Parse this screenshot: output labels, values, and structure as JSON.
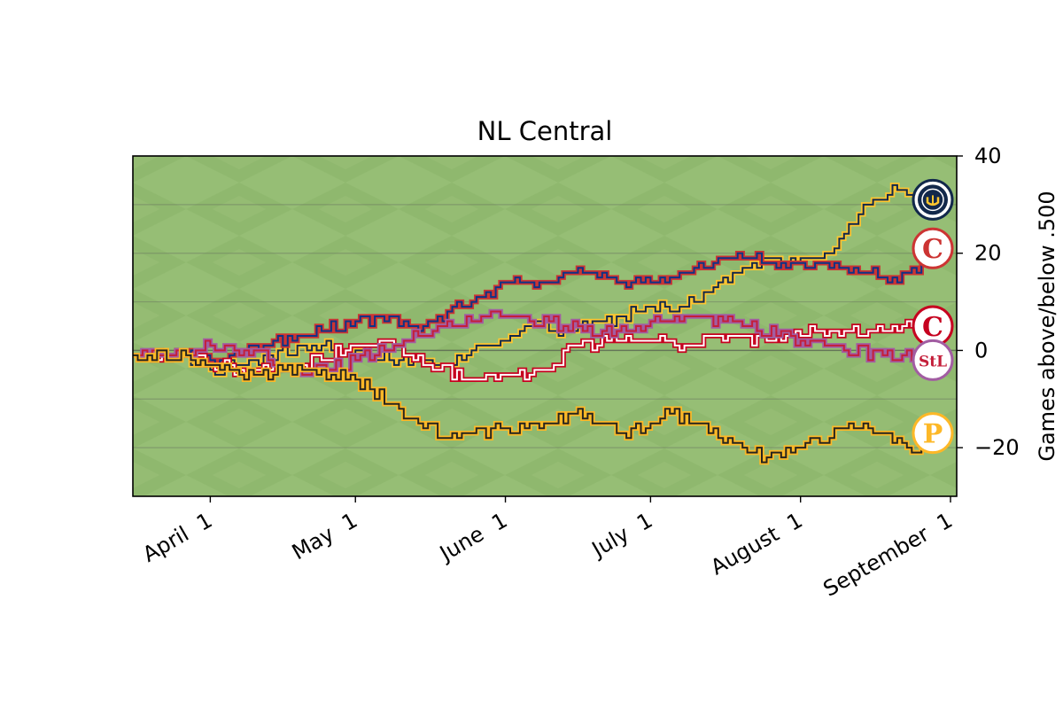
{
  "chart_data": {
    "type": "line",
    "title": "NL Central",
    "xlabel": "",
    "ylabel": "Games above/below .500",
    "y_axis_side": "right",
    "ylim": [
      -30,
      40
    ],
    "xlim": [
      "2025-03-16",
      "2025-09-01"
    ],
    "y_ticks": [
      40,
      20,
      0,
      -20
    ],
    "x_ticks": [
      {
        "date": "2025-04-01",
        "label": "April  1"
      },
      {
        "date": "2025-05-01",
        "label": "May  1"
      },
      {
        "date": "2025-06-01",
        "label": "June  1"
      },
      {
        "date": "2025-07-01",
        "label": "July  1"
      },
      {
        "date": "2025-08-01",
        "label": "August  1"
      },
      {
        "date": "2025-09-01",
        "label": "September  1"
      }
    ],
    "grid": "horizontal",
    "background": "baseball field grass",
    "series": [
      {
        "logo": "brewers-logo",
        "color": "#12284B",
        "accent": "#FFC52F",
        "logo_text": "",
        "points": [
          [
            "2025-03-16",
            -1
          ],
          [
            "2025-03-27",
            -1
          ],
          [
            "2025-04-01",
            -4
          ],
          [
            "2025-04-10",
            -2
          ],
          [
            "2025-04-20",
            1
          ],
          [
            "2025-05-01",
            0
          ],
          [
            "2025-05-10",
            -2
          ],
          [
            "2025-05-20",
            -3
          ],
          [
            "2025-05-31",
            2
          ],
          [
            "2025-06-05",
            5
          ],
          [
            "2025-06-15",
            4
          ],
          [
            "2025-06-25",
            7
          ],
          [
            "2025-07-01",
            9
          ],
          [
            "2025-07-08",
            9
          ],
          [
            "2025-07-15",
            14
          ],
          [
            "2025-07-20",
            17
          ],
          [
            "2025-07-25",
            19
          ],
          [
            "2025-07-31",
            18
          ],
          [
            "2025-08-05",
            19
          ],
          [
            "2025-08-10",
            24
          ],
          [
            "2025-08-15",
            30
          ],
          [
            "2025-08-20",
            34
          ],
          [
            "2025-08-25",
            31
          ],
          [
            "2025-08-28",
            31
          ]
        ]
      },
      {
        "logo": "cubs-logo",
        "color": "#0E3386",
        "accent": "#CC3433",
        "logo_text": "C",
        "points": [
          [
            "2025-03-16",
            -1
          ],
          [
            "2025-03-27",
            -1
          ],
          [
            "2025-04-01",
            -2
          ],
          [
            "2025-04-10",
            1
          ],
          [
            "2025-04-20",
            3
          ],
          [
            "2025-05-01",
            6
          ],
          [
            "2025-05-08",
            7
          ],
          [
            "2025-05-15",
            5
          ],
          [
            "2025-05-25",
            10
          ],
          [
            "2025-06-01",
            14
          ],
          [
            "2025-06-10",
            14
          ],
          [
            "2025-06-15",
            16
          ],
          [
            "2025-06-25",
            14
          ],
          [
            "2025-07-01",
            14
          ],
          [
            "2025-07-10",
            17
          ],
          [
            "2025-07-20",
            19
          ],
          [
            "2025-07-30",
            18
          ],
          [
            "2025-08-10",
            17
          ],
          [
            "2025-08-18",
            15
          ],
          [
            "2025-08-25",
            16
          ],
          [
            "2025-08-28",
            21
          ]
        ]
      },
      {
        "logo": "reds-logo",
        "color": "#FFFFFF",
        "accent": "#C6011F",
        "logo_text": "C",
        "points": [
          [
            "2025-03-16",
            -1
          ],
          [
            "2025-03-27",
            -1
          ],
          [
            "2025-04-01",
            -3
          ],
          [
            "2025-04-10",
            -4
          ],
          [
            "2025-04-20",
            -3
          ],
          [
            "2025-05-01",
            1
          ],
          [
            "2025-05-08",
            2
          ],
          [
            "2025-05-15",
            -3
          ],
          [
            "2025-05-25",
            -6
          ],
          [
            "2025-06-01",
            -5
          ],
          [
            "2025-06-10",
            -4
          ],
          [
            "2025-06-15",
            1
          ],
          [
            "2025-06-25",
            2
          ],
          [
            "2025-07-01",
            2
          ],
          [
            "2025-07-10",
            1
          ],
          [
            "2025-07-15",
            3
          ],
          [
            "2025-07-25",
            2
          ],
          [
            "2025-08-01",
            3
          ],
          [
            "2025-08-05",
            4
          ],
          [
            "2025-08-15",
            4
          ],
          [
            "2025-08-25",
            5
          ],
          [
            "2025-08-28",
            5
          ]
        ]
      },
      {
        "logo": "cardinals-logo",
        "color": "#C41E3A",
        "accent": "#A25DA2",
        "logo_text": "StL",
        "points": [
          [
            "2025-03-16",
            -1
          ],
          [
            "2025-03-27",
            -1
          ],
          [
            "2025-04-01",
            1
          ],
          [
            "2025-04-10",
            0
          ],
          [
            "2025-04-20",
            -5
          ],
          [
            "2025-05-01",
            -2
          ],
          [
            "2025-05-10",
            1
          ],
          [
            "2025-05-20",
            6
          ],
          [
            "2025-05-31",
            7
          ],
          [
            "2025-06-10",
            6
          ],
          [
            "2025-06-20",
            3
          ],
          [
            "2025-07-01",
            6
          ],
          [
            "2025-07-10",
            7
          ],
          [
            "2025-07-20",
            5
          ],
          [
            "2025-08-01",
            2
          ],
          [
            "2025-08-10",
            0
          ],
          [
            "2025-08-18",
            -1
          ],
          [
            "2025-08-28",
            -2
          ]
        ]
      },
      {
        "logo": "pirates-logo",
        "color": "#27251F",
        "accent": "#FDB827",
        "logo_text": "P",
        "points": [
          [
            "2025-03-16",
            -1
          ],
          [
            "2025-03-27",
            -1
          ],
          [
            "2025-04-01",
            -3
          ],
          [
            "2025-04-10",
            -5
          ],
          [
            "2025-04-20",
            -4
          ],
          [
            "2025-05-01",
            -6
          ],
          [
            "2025-05-10",
            -12
          ],
          [
            "2025-05-20",
            -18
          ],
          [
            "2025-05-31",
            -16
          ],
          [
            "2025-06-05",
            -16
          ],
          [
            "2025-06-10",
            -15
          ],
          [
            "2025-06-15",
            -13
          ],
          [
            "2025-06-25",
            -17
          ],
          [
            "2025-07-01",
            -15
          ],
          [
            "2025-07-05",
            -13
          ],
          [
            "2025-07-15",
            -18
          ],
          [
            "2025-07-25",
            -22
          ],
          [
            "2025-08-01",
            -20
          ],
          [
            "2025-08-10",
            -16
          ],
          [
            "2025-08-15",
            -16
          ],
          [
            "2025-08-20",
            -19
          ],
          [
            "2025-08-25",
            -21
          ],
          [
            "2025-08-28",
            -17
          ]
        ]
      }
    ]
  }
}
